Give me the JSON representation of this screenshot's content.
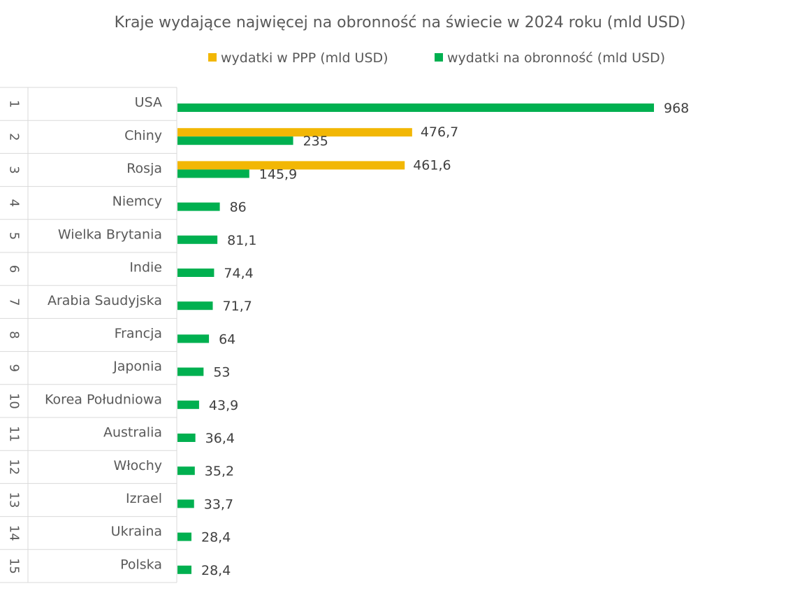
{
  "chart_data": {
    "type": "bar",
    "orientation": "horizontal",
    "title": "Kraje wydające najwięcej na obronność na świecie w 2024 roku (mld USD)",
    "ranks": [
      "1",
      "2",
      "3",
      "4",
      "5",
      "6",
      "7",
      "8",
      "9",
      "10",
      "11",
      "12",
      "13",
      "14",
      "15"
    ],
    "categories": [
      "USA",
      "Chiny",
      "Rosja",
      "Niemcy",
      "Wielka Brytania",
      "Indie",
      "Arabia Saudyjska",
      "Francja",
      "Japonia",
      "Korea Południowa",
      "Australia",
      "Włochy",
      "Izrael",
      "Ukraina",
      "Polska"
    ],
    "series": [
      {
        "name": "wydatki w PPP (mld USD)",
        "color": "#F2B705",
        "values": [
          null,
          476.7,
          461.6,
          null,
          null,
          null,
          null,
          null,
          null,
          null,
          null,
          null,
          null,
          null,
          null
        ],
        "labels": [
          "",
          "476,7",
          "461,6",
          "",
          "",
          "",
          "",
          "",
          "",
          "",
          "",
          "",
          "",
          "",
          ""
        ]
      },
      {
        "name": "wydatki na obronność (mld USD)",
        "color": "#00B050",
        "values": [
          968,
          235,
          145.9,
          86,
          81.1,
          74.4,
          71.7,
          64,
          53,
          43.9,
          36.4,
          35.2,
          33.7,
          28.4,
          28.4
        ],
        "labels": [
          "968",
          "235",
          "145,9",
          "86",
          "81,1",
          "74,4",
          "71,7",
          "64",
          "53",
          "43,9",
          "36,4",
          "35,2",
          "33,7",
          "28,4",
          "28,4"
        ]
      }
    ],
    "xlim": [
      0,
      968
    ],
    "legend_position": "top",
    "grid": false,
    "axis_line_color": "#D9D9D9"
  }
}
